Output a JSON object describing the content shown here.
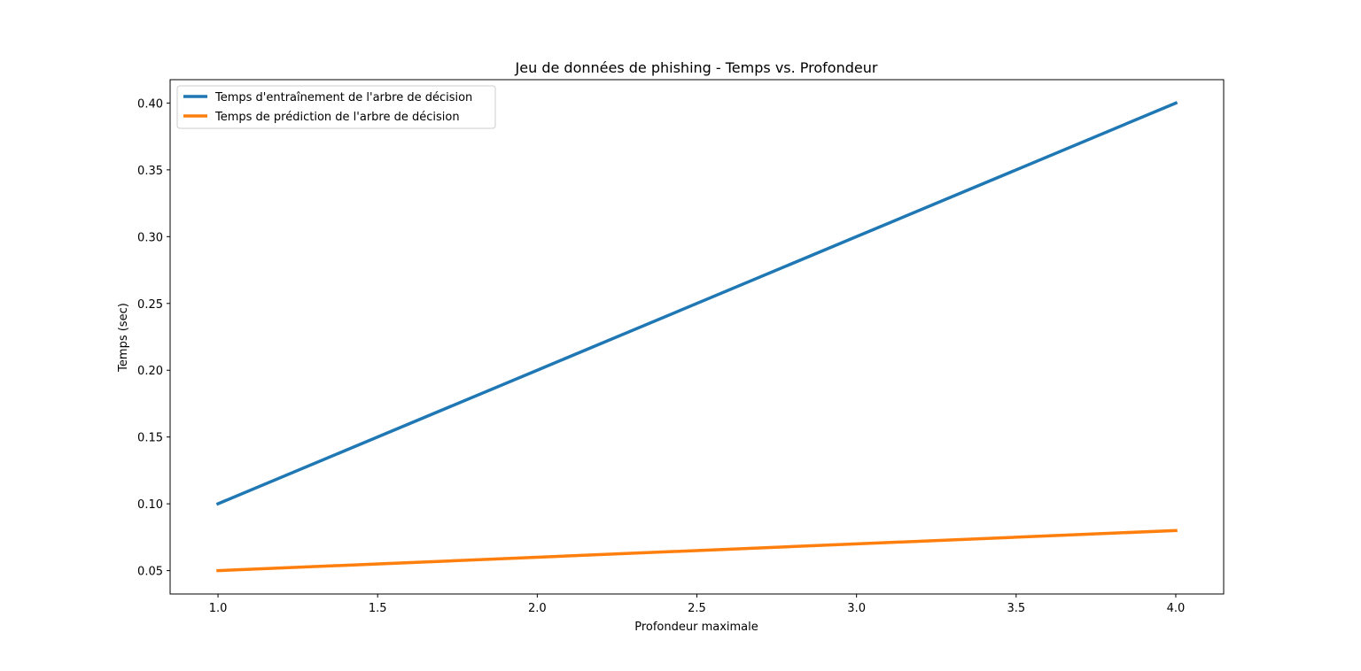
{
  "chart_data": {
    "type": "line",
    "title": "Jeu de données de phishing - Temps vs. Profondeur",
    "xlabel": "Profondeur maximale",
    "ylabel": "Temps (sec)",
    "x": [
      1.0,
      2.0,
      3.0,
      4.0
    ],
    "xlim": [
      0.85,
      4.15
    ],
    "ylim": [
      0.0325,
      0.4175
    ],
    "xticks": [
      1.0,
      1.5,
      2.0,
      2.5,
      3.0,
      3.5,
      4.0
    ],
    "xtick_labels": [
      "1.0",
      "1.5",
      "2.0",
      "2.5",
      "3.0",
      "3.5",
      "4.0"
    ],
    "yticks": [
      0.05,
      0.1,
      0.15,
      0.2,
      0.25,
      0.3,
      0.35,
      0.4
    ],
    "ytick_labels": [
      "0.05",
      "0.10",
      "0.15",
      "0.20",
      "0.25",
      "0.30",
      "0.35",
      "0.40"
    ],
    "grid": false,
    "legend_position": "top-left",
    "series": [
      {
        "name": "Temps d'entraînement de l'arbre de décision",
        "color": "#1f77b4",
        "values": [
          0.1,
          0.2,
          0.3,
          0.4
        ]
      },
      {
        "name": "Temps de prédiction de l'arbre de décision",
        "color": "#ff7f0e",
        "values": [
          0.05,
          0.06,
          0.07,
          0.08
        ]
      }
    ]
  }
}
